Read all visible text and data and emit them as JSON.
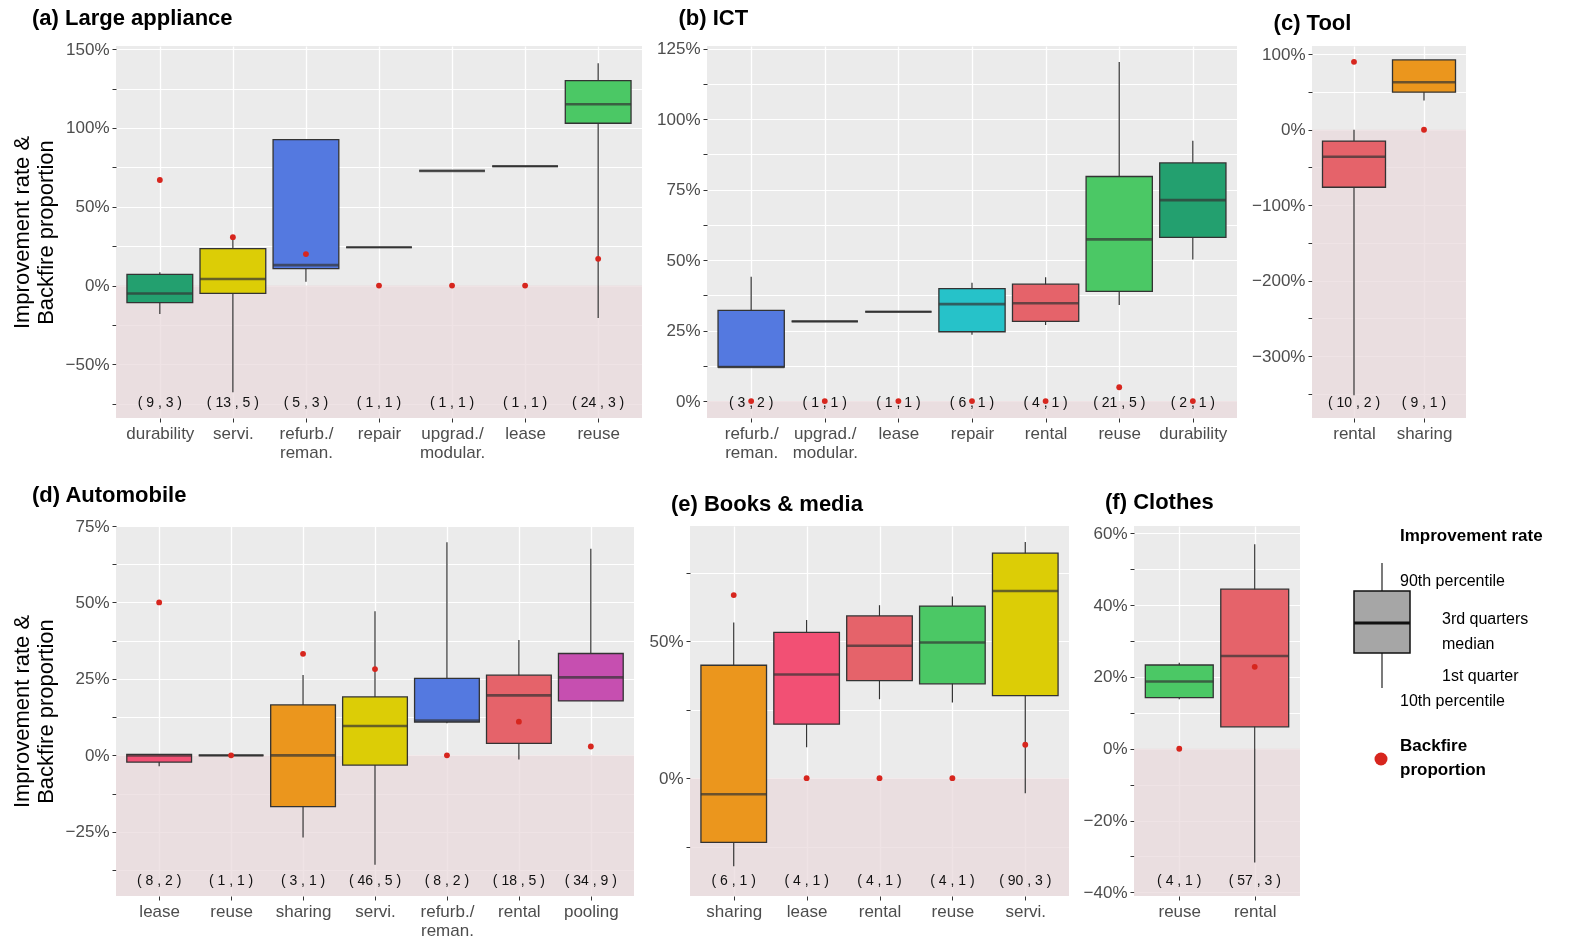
{
  "chart_data": [
    {
      "type": "box",
      "title": "(a) Large appliance",
      "ylabel": "Improvement rate &\nBackfire proportion",
      "grid": true,
      "categories": [
        "durability",
        "servi.",
        "refurb./\nreman.",
        "repair",
        "upgrad./\nmodular.",
        "lease",
        "reuse"
      ],
      "ylim": [
        -84,
        152
      ],
      "yticks": [
        {
          "value": -75,
          "label": null
        },
        {
          "value": -50,
          "label": "−50%"
        },
        {
          "value": -25,
          "label": null
        },
        {
          "value": 0,
          "label": "0%"
        },
        {
          "value": 25,
          "label": null
        },
        {
          "value": 50,
          "label": "50%"
        },
        {
          "value": 75,
          "label": null
        },
        {
          "value": 100,
          "label": "100%"
        },
        {
          "value": 125,
          "label": null
        },
        {
          "value": 150,
          "label": "150%"
        }
      ],
      "series": [
        {
          "type": "box",
          "colors": [
            "#23a06f",
            "#dccd06",
            "#5479e0",
            "#333333",
            "#333333",
            "#333333",
            "#4bc865"
          ],
          "boxes": [
            {
              "low": -18,
              "q1": -10.8,
              "median": -5,
              "q3": 7.1,
              "high": 8.5
            },
            {
              "low": -67.7,
              "q1": -5,
              "median": 4.2,
              "q3": 23.5,
              "high": 29.6
            },
            {
              "low": 2.4,
              "q1": 10.8,
              "median": 13,
              "q3": 92.6,
              "high": 92.6
            },
            {
              "low": 24.3,
              "q1": 24.3,
              "median": 24.3,
              "q3": 24.3,
              "high": 24.3
            },
            {
              "low": 72.8,
              "q1": 72.8,
              "median": 72.8,
              "q3": 72.8,
              "high": 72.8
            },
            {
              "low": 75.7,
              "q1": 75.7,
              "median": 75.7,
              "q3": 75.7,
              "high": 75.7
            },
            {
              "low": -20.6,
              "q1": 103,
              "median": 115,
              "q3": 130,
              "high": 141
            }
          ]
        },
        {
          "type": "scatter",
          "color": "#d7261e",
          "x": [
            "durability",
            "servi.",
            "refurb./\nreman.",
            "repair",
            "upgrad./\nmodular.",
            "lease",
            "reuse"
          ],
          "values": [
            67,
            30.7,
            20,
            0,
            0,
            0,
            17
          ]
        }
      ],
      "bands": [
        {
          "axis": "y",
          "from": -84,
          "to": 0,
          "color": "#ead9dc"
        }
      ],
      "annotations": [
        "( 9 , 3 )",
        "( 13 , 5 )",
        "( 5 , 3 )",
        "( 1 , 1 )",
        "( 1 , 1 )",
        "( 1 , 1 )",
        "( 24 , 3 )"
      ]
    },
    {
      "type": "box",
      "title": "(b) ICT",
      "grid": true,
      "categories": [
        "refurb./\nreman.",
        "upgrad./\nmodular.",
        "lease",
        "repair",
        "rental",
        "reuse",
        "durability"
      ],
      "ylim": [
        -6,
        126
      ],
      "yticks": [
        {
          "value": 0,
          "label": "0%"
        },
        {
          "value": 12.5,
          "label": null
        },
        {
          "value": 25,
          "label": "25%"
        },
        {
          "value": 37.5,
          "label": null
        },
        {
          "value": 50,
          "label": "50%"
        },
        {
          "value": 62.5,
          "label": null
        },
        {
          "value": 75,
          "label": "75%"
        },
        {
          "value": 87.5,
          "label": null
        },
        {
          "value": 100,
          "label": "100%"
        },
        {
          "value": 112.5,
          "label": null
        },
        {
          "value": 125,
          "label": "125%"
        }
      ],
      "series": [
        {
          "type": "box",
          "colors": [
            "#5479e0",
            "#333333",
            "#333333",
            "#26c2c9",
            "#e5636a",
            "#4bc865",
            "#23a06f"
          ],
          "boxes": [
            {
              "low": 12.1,
              "q1": 12.1,
              "median": 12.1,
              "q3": 32.2,
              "high": 44.1
            },
            {
              "low": 28.3,
              "q1": 28.3,
              "median": 28.3,
              "q3": 28.3,
              "high": 28.3
            },
            {
              "low": 31.7,
              "q1": 31.7,
              "median": 31.7,
              "q3": 31.7,
              "high": 31.7
            },
            {
              "low": 23.5,
              "q1": 24.6,
              "median": 34.4,
              "q3": 39.9,
              "high": 42
            },
            {
              "low": 27,
              "q1": 28.3,
              "median": 34.7,
              "q3": 41.5,
              "high": 43.9
            },
            {
              "low": 34.1,
              "q1": 38.9,
              "median": 57.4,
              "q3": 79.7,
              "high": 120.3
            },
            {
              "low": 50.2,
              "q1": 58.1,
              "median": 71.3,
              "q3": 84.5,
              "high": 92.4
            }
          ]
        },
        {
          "type": "scatter",
          "color": "#d7261e",
          "x": [
            "refurb./\nreman.",
            "upgrad./\nmodular.",
            "lease",
            "repair",
            "rental",
            "reuse",
            "durability"
          ],
          "values": [
            0,
            0,
            0,
            0,
            0,
            4.9,
            0
          ]
        }
      ],
      "bands": [
        {
          "axis": "y",
          "from": -6,
          "to": 0,
          "color": "#ead9dc"
        }
      ],
      "annotations": [
        "( 3 , 2 )",
        "( 1 , 1 )",
        "( 1 , 1 )",
        "( 6 , 1 )",
        "( 4 , 1 )",
        "( 21 , 5 )",
        "( 2 , 1 )"
      ]
    },
    {
      "type": "box",
      "title": "(c) Tool",
      "grid": true,
      "categories": [
        "rental",
        "sharing"
      ],
      "ylim": [
        -382,
        111
      ],
      "yticks": [
        {
          "value": -350,
          "label": null
        },
        {
          "value": -300,
          "label": "−300%"
        },
        {
          "value": -250,
          "label": null
        },
        {
          "value": -200,
          "label": "−200%"
        },
        {
          "value": -150,
          "label": null
        },
        {
          "value": -100,
          "label": "−100%"
        },
        {
          "value": -50,
          "label": null
        },
        {
          "value": 0,
          "label": "0%"
        },
        {
          "value": 50,
          "label": null
        },
        {
          "value": 100,
          "label": "100%"
        }
      ],
      "series": [
        {
          "type": "box",
          "colors": [
            "#e5636a",
            "#eb961d"
          ],
          "boxes": [
            {
              "low": -352,
              "q1": -76.2,
              "median": -35.7,
              "q3": -15,
              "high": 0
            },
            {
              "low": 38.8,
              "q1": 49.8,
              "median": 63,
              "q3": 92.5,
              "high": 92.5
            }
          ]
        },
        {
          "type": "scatter",
          "color": "#d7261e",
          "x": [
            "rental",
            "sharing"
          ],
          "values": [
            90,
            0
          ]
        }
      ],
      "bands": [
        {
          "axis": "y",
          "from": -382,
          "to": 0,
          "color": "#ead9dc"
        }
      ],
      "annotations": [
        "( 10 , 2 )",
        "( 9 , 1 )"
      ]
    },
    {
      "type": "box",
      "title": "(d) Automobile",
      "ylabel": "Improvement rate &\nBackfire proportion",
      "grid": true,
      "categories": [
        "lease",
        "reuse",
        "sharing",
        "servi.",
        "refurb./\nreman.",
        "rental",
        "pooling"
      ],
      "ylim": [
        -46,
        75
      ],
      "yticks": [
        {
          "value": -37.5,
          "label": null
        },
        {
          "value": -25,
          "label": "−25%"
        },
        {
          "value": -12.5,
          "label": null
        },
        {
          "value": 0,
          "label": "0%"
        },
        {
          "value": 12.5,
          "label": null
        },
        {
          "value": 25,
          "label": "25%"
        },
        {
          "value": 37.5,
          "label": null
        },
        {
          "value": 50,
          "label": "50%"
        },
        {
          "value": 62.5,
          "label": null
        },
        {
          "value": 75,
          "label": "75%"
        }
      ],
      "series": [
        {
          "type": "box",
          "colors": [
            "#f25074",
            "#333333",
            "#eb961d",
            "#dccd06",
            "#5479e0",
            "#e5636a",
            "#c64fb0"
          ],
          "boxes": [
            {
              "low": -3.6,
              "q1": -2.2,
              "median": 0,
              "q3": 0.3,
              "high": 0.3
            },
            {
              "low": 0,
              "q1": 0,
              "median": 0,
              "q3": 0,
              "high": 0
            },
            {
              "low": -26.9,
              "q1": -16.8,
              "median": 0,
              "q3": 16.5,
              "high": 26.3
            },
            {
              "low": -35.8,
              "q1": -3.2,
              "median": 9.6,
              "q3": 19.1,
              "high": 47.1
            },
            {
              "low": 10.5,
              "q1": 10.9,
              "median": 11.4,
              "q3": 25.2,
              "high": 69.7
            },
            {
              "low": -1.4,
              "q1": 3.9,
              "median": 19.6,
              "q3": 26.2,
              "high": 37.7
            },
            {
              "low": 17.8,
              "q1": 17.8,
              "median": 25.5,
              "q3": 33.3,
              "high": 67.6
            }
          ]
        },
        {
          "type": "scatter",
          "color": "#d7261e",
          "x": [
            "lease",
            "reuse",
            "sharing",
            "servi.",
            "refurb./\nreman.",
            "rental",
            "pooling"
          ],
          "values": [
            50,
            0,
            33.2,
            28.2,
            0,
            11,
            2.9
          ]
        }
      ],
      "bands": [
        {
          "axis": "y",
          "from": -46,
          "to": 0,
          "color": "#ead9dc"
        }
      ],
      "annotations": [
        "( 8 , 2 )",
        "( 1 , 1 )",
        "( 3 , 1 )",
        "( 46 , 5 )",
        "( 8 , 2 )",
        "( 18 , 5 )",
        "( 34 , 9 )"
      ]
    },
    {
      "type": "box",
      "title": "(e) Books & media",
      "grid": true,
      "categories": [
        "sharing",
        "lease",
        "rental",
        "reuse",
        "servi."
      ],
      "ylim": [
        -43,
        92
      ],
      "yticks": [
        {
          "value": -25,
          "label": null
        },
        {
          "value": 0,
          "label": "0%"
        },
        {
          "value": 25,
          "label": null
        },
        {
          "value": 50,
          "label": "50%"
        },
        {
          "value": 75,
          "label": null
        }
      ],
      "series": [
        {
          "type": "box",
          "colors": [
            "#eb961d",
            "#f25074",
            "#e5636a",
            "#4bc865",
            "#dccd06"
          ],
          "boxes": [
            {
              "low": -32.1,
              "q1": -23.4,
              "median": -5.9,
              "q3": 41.2,
              "high": 56.8
            },
            {
              "low": 11.3,
              "q1": 19.7,
              "median": 37.8,
              "q3": 53.2,
              "high": 57.7
            },
            {
              "low": 28.8,
              "q1": 35.6,
              "median": 48.3,
              "q3": 59.2,
              "high": 63.1
            },
            {
              "low": 27.6,
              "q1": 34.4,
              "median": 49.5,
              "q3": 62.8,
              "high": 66.3
            },
            {
              "low": -5.5,
              "q1": 30.1,
              "median": 68.3,
              "q3": 82.1,
              "high": 86.2
            }
          ]
        },
        {
          "type": "scatter",
          "color": "#d7261e",
          "x": [
            "sharing",
            "lease",
            "rental",
            "reuse",
            "servi."
          ],
          "values": [
            66.8,
            0,
            0,
            0,
            12.2
          ]
        }
      ],
      "bands": [
        {
          "axis": "y",
          "from": -43,
          "to": 0,
          "color": "#ead9dc"
        }
      ],
      "annotations": [
        "( 6 , 1 )",
        "( 4 , 1 )",
        "( 4 , 1 )",
        "( 4 , 1 )",
        "( 90 , 3 )"
      ]
    },
    {
      "type": "box",
      "title": "(f) Clothes",
      "grid": true,
      "legend": "right",
      "categories": [
        "reuse",
        "rental"
      ],
      "ylim": [
        -41,
        62
      ],
      "yticks": [
        {
          "value": -40,
          "label": "−40%"
        },
        {
          "value": -30,
          "label": null
        },
        {
          "value": -20,
          "label": "−20%"
        },
        {
          "value": -10,
          "label": null
        },
        {
          "value": 0,
          "label": "0%"
        },
        {
          "value": 10,
          "label": null
        },
        {
          "value": 20,
          "label": "20%"
        },
        {
          "value": 30,
          "label": null
        },
        {
          "value": 40,
          "label": "40%"
        },
        {
          "value": 50,
          "label": null
        },
        {
          "value": 60,
          "label": "60%"
        }
      ],
      "series": [
        {
          "type": "box",
          "name": "Improvement rate",
          "colors": [
            "#4bc865",
            "#e5636a"
          ],
          "boxes": [
            {
              "low": 13.8,
              "q1": 14.2,
              "median": 18.7,
              "q3": 23.3,
              "high": 23.9
            },
            {
              "low": -31.7,
              "q1": 6.1,
              "median": 25.8,
              "q3": 44.4,
              "high": 56.9
            }
          ]
        },
        {
          "type": "scatter",
          "name": "Backfire proportion",
          "color": "#d7261e",
          "x": [
            "reuse",
            "rental"
          ],
          "values": [
            0,
            22.8
          ]
        }
      ],
      "bands": [
        {
          "axis": "y",
          "from": -41,
          "to": 0,
          "color": "#ead9dc"
        }
      ],
      "annotations": [
        "( 4 , 1 )",
        "( 57 , 3 )",
        "90th percentile",
        "3rd quarters",
        "median",
        "1st quarter",
        "10th percentile"
      ]
    }
  ]
}
